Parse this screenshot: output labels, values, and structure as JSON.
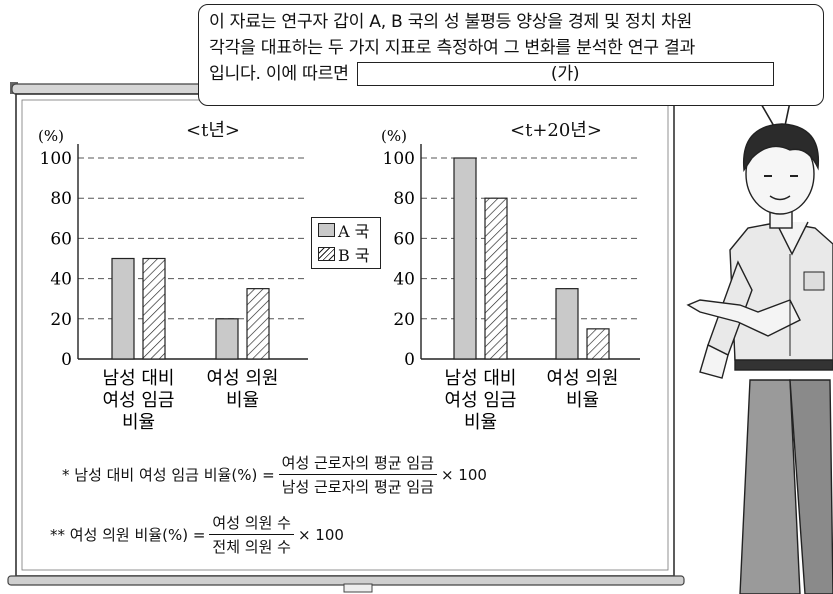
{
  "speech": {
    "line1": "이 자료는 연구자 갑이 A, B 국의 성 불평등 양상을 경제 및 정치 차원",
    "line2": "각각을 대표하는 두 가지 지표로 측정하여 그 변화를 분석한 연구 결과",
    "line3": "입니다. 이에 따르면",
    "blank": "(가)"
  },
  "legend": {
    "a": "A 국",
    "b": "B 국"
  },
  "chart_data": [
    {
      "type": "bar",
      "title": "<t년>",
      "ylabel": "(%)",
      "ylim": [
        0,
        100
      ],
      "yticks": [
        "0",
        "20",
        "40",
        "60",
        "80",
        "100"
      ],
      "categories": [
        [
          "남성 대비",
          "여성 임금",
          "비율"
        ],
        [
          "여성 의원",
          "비율"
        ]
      ],
      "series": [
        {
          "name": "A 국",
          "values": [
            50,
            20
          ]
        },
        {
          "name": "B 국",
          "values": [
            50,
            35
          ]
        }
      ]
    },
    {
      "type": "bar",
      "title": "<t+20년>",
      "ylabel": "(%)",
      "ylim": [
        0,
        100
      ],
      "yticks": [
        "0",
        "20",
        "40",
        "60",
        "80",
        "100"
      ],
      "categories": [
        [
          "남성 대비",
          "여성 임금",
          "비율"
        ],
        [
          "여성 의원",
          "비율"
        ]
      ],
      "series": [
        {
          "name": "A 국",
          "values": [
            100,
            35
          ]
        },
        {
          "name": "B 국",
          "values": [
            80,
            15
          ]
        }
      ]
    }
  ],
  "notes": {
    "n1": {
      "prefix": "* 남성 대비 여성 임금 비율(%) =",
      "num": "여성 근로자의 평균 임금",
      "den": "남성 근로자의 평균 임금",
      "suffix": "× 100"
    },
    "n2": {
      "prefix": "** 여성 의원 비율(%) =",
      "num": "여성 의원 수",
      "den": "전체 의원 수",
      "suffix": "× 100"
    }
  }
}
